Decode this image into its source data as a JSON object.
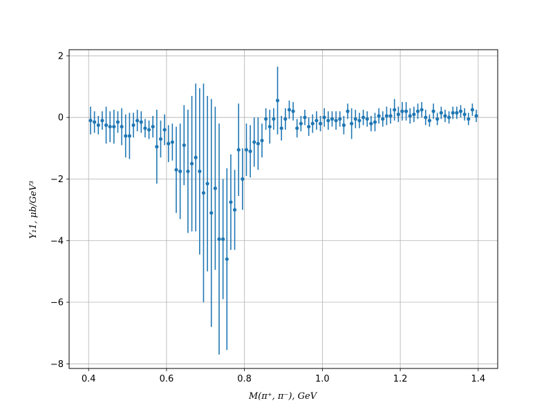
{
  "chart_data": {
    "type": "scatter",
    "xlabel": "M(π⁺, π⁻), GeV",
    "ylabel": "Y₁1, μb/GeV³",
    "xlim": [
      0.35,
      1.45
    ],
    "ylim": [
      -8.15,
      2.2
    ],
    "x_ticks": [
      0.4,
      0.6,
      0.8,
      1.0,
      1.2,
      1.4
    ],
    "y_ticks": [
      -8,
      -6,
      -4,
      -2,
      0,
      2
    ],
    "x_tick_labels": [
      "0.4",
      "0.6",
      "0.8",
      "1.0",
      "1.2",
      "1.4"
    ],
    "y_tick_labels": [
      "−8",
      "−6",
      "−4",
      "−2",
      "0",
      "2"
    ],
    "grid": true,
    "color": "#1f77b4",
    "series": [
      {
        "x": [
          0.405,
          0.415,
          0.425,
          0.435,
          0.445,
          0.455,
          0.465,
          0.475,
          0.485,
          0.495,
          0.505,
          0.515,
          0.525,
          0.535,
          0.545,
          0.555,
          0.565,
          0.575,
          0.585,
          0.595,
          0.605,
          0.615,
          0.625,
          0.635,
          0.645,
          0.655,
          0.665,
          0.675,
          0.685,
          0.695,
          0.705,
          0.715,
          0.725,
          0.735,
          0.745,
          0.755,
          0.765,
          0.775,
          0.785,
          0.795,
          0.805,
          0.815,
          0.825,
          0.835,
          0.845,
          0.855,
          0.865,
          0.875,
          0.885,
          0.895,
          0.905,
          0.915,
          0.925,
          0.935,
          0.945,
          0.955,
          0.965,
          0.975,
          0.985,
          0.995,
          1.005,
          1.015,
          1.025,
          1.035,
          1.045,
          1.055,
          1.065,
          1.075,
          1.085,
          1.095,
          1.105,
          1.115,
          1.125,
          1.135,
          1.145,
          1.155,
          1.165,
          1.175,
          1.185,
          1.195,
          1.205,
          1.215,
          1.225,
          1.235,
          1.245,
          1.255,
          1.265,
          1.275,
          1.285,
          1.295,
          1.305,
          1.315,
          1.325,
          1.335,
          1.345,
          1.355,
          1.365,
          1.375,
          1.385,
          1.395
        ],
        "y": [
          -0.1,
          -0.15,
          -0.25,
          -0.1,
          -0.25,
          -0.3,
          -0.3,
          -0.15,
          -0.3,
          -0.6,
          -0.6,
          -0.25,
          -0.1,
          -0.15,
          -0.35,
          -0.4,
          -0.3,
          -0.95,
          -0.7,
          -0.4,
          -0.85,
          -0.8,
          -1.7,
          -1.75,
          -0.9,
          -1.75,
          -1.5,
          -1.3,
          -1.75,
          -2.45,
          -2.15,
          -3.1,
          -2.3,
          -3.95,
          -3.95,
          -4.6,
          -2.75,
          -3.0,
          -1.05,
          -2.0,
          -1.05,
          -1.1,
          -0.8,
          -0.85,
          -0.75,
          -0.05,
          -0.3,
          -0.05,
          0.55,
          -0.35,
          -0.05,
          0.25,
          0.2,
          -0.35,
          -0.2,
          0.0,
          -0.3,
          -0.2,
          -0.1,
          -0.2,
          0.0,
          -0.1,
          -0.05,
          -0.1,
          -0.05,
          -0.25,
          0.2,
          -0.2,
          -0.05,
          -0.1,
          0.0,
          -0.05,
          -0.2,
          -0.15,
          0.05,
          -0.05,
          0.05,
          0.05,
          0.25,
          0.1,
          0.2,
          0.2,
          0.05,
          0.1,
          0.2,
          0.25,
          0.0,
          -0.1,
          0.2,
          -0.05,
          0.15,
          0.05,
          0.0,
          0.15,
          0.15,
          0.2,
          0.1,
          -0.05,
          0.25,
          0.05
        ],
        "yerr": [
          0.45,
          0.35,
          0.3,
          0.3,
          0.6,
          0.5,
          0.55,
          0.35,
          0.6,
          0.7,
          0.75,
          0.4,
          0.35,
          0.35,
          0.3,
          0.3,
          0.35,
          1.2,
          0.6,
          0.5,
          0.6,
          0.6,
          1.4,
          1.55,
          1.3,
          2.0,
          2.2,
          2.4,
          2.7,
          3.55,
          2.85,
          3.7,
          2.65,
          3.75,
          1.95,
          2.95,
          1.55,
          1.3,
          1.5,
          1.0,
          0.85,
          0.85,
          0.8,
          0.85,
          0.55,
          0.35,
          0.55,
          0.35,
          1.1,
          0.4,
          0.35,
          0.3,
          0.3,
          0.3,
          0.25,
          0.25,
          0.3,
          0.3,
          0.3,
          0.25,
          0.3,
          0.3,
          0.25,
          0.3,
          0.25,
          0.3,
          0.25,
          0.5,
          0.3,
          0.25,
          0.25,
          0.25,
          0.25,
          0.3,
          0.25,
          0.25,
          0.3,
          0.25,
          0.35,
          0.25,
          0.3,
          0.3,
          0.25,
          0.25,
          0.25,
          0.25,
          0.25,
          0.2,
          0.25,
          0.2,
          0.2,
          0.2,
          0.2,
          0.2,
          0.2,
          0.2,
          0.2,
          0.2,
          0.2,
          0.2
        ]
      }
    ]
  }
}
